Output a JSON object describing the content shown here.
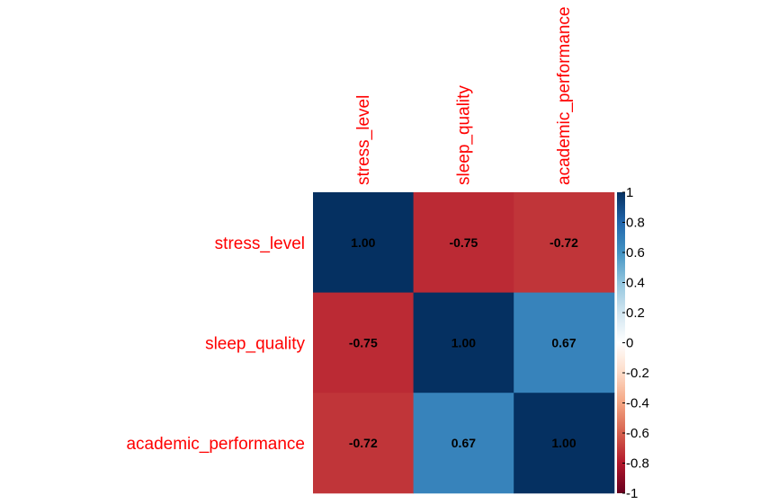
{
  "chart_data": {
    "type": "heatmap",
    "title": "",
    "variables": [
      "stress_level",
      "sleep_quality",
      "academic_performance"
    ],
    "matrix": [
      [
        1.0,
        -0.75,
        -0.72
      ],
      [
        -0.75,
        1.0,
        0.67
      ],
      [
        -0.72,
        0.67,
        1.0
      ]
    ],
    "cell_labels": [
      [
        "1.00",
        "-0.75",
        "-0.72"
      ],
      [
        "-0.75",
        "1.00",
        "0.67"
      ],
      [
        "-0.72",
        "0.67",
        "1.00"
      ]
    ],
    "color_scale": {
      "range": [
        -1,
        1
      ],
      "stops": [
        "#67001f",
        "#b2182b",
        "#d6604d",
        "#f4a582",
        "#fddbc7",
        "#ffffff",
        "#d1e5f0",
        "#92c5de",
        "#4393c3",
        "#2166ac",
        "#053061"
      ],
      "ticks": [
        "1",
        "0.8",
        "0.6",
        "0.4",
        "0.2",
        "0",
        "-0.2",
        "-0.4",
        "-0.6",
        "-0.8",
        "-1"
      ]
    },
    "label_color": "#ff0000",
    "legend_position": "right",
    "grid": false
  }
}
